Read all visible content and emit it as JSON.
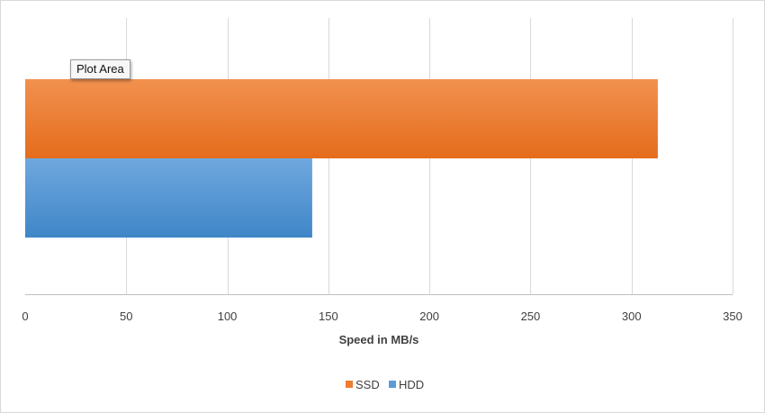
{
  "tooltip": {
    "text": "Plot Area"
  },
  "chart_data": {
    "type": "bar",
    "orientation": "horizontal",
    "title": "",
    "xlabel": "Speed in MB/s",
    "ylabel": "",
    "xlim": [
      0,
      350
    ],
    "xticks": [
      0,
      50,
      100,
      150,
      200,
      250,
      300,
      350
    ],
    "grid": true,
    "legend_position": "bottom",
    "series": [
      {
        "name": "SSD",
        "values": [
          313
        ],
        "color": "#ED7D31"
      },
      {
        "name": "HDD",
        "values": [
          142
        ],
        "color": "#5B9BD5"
      }
    ]
  }
}
